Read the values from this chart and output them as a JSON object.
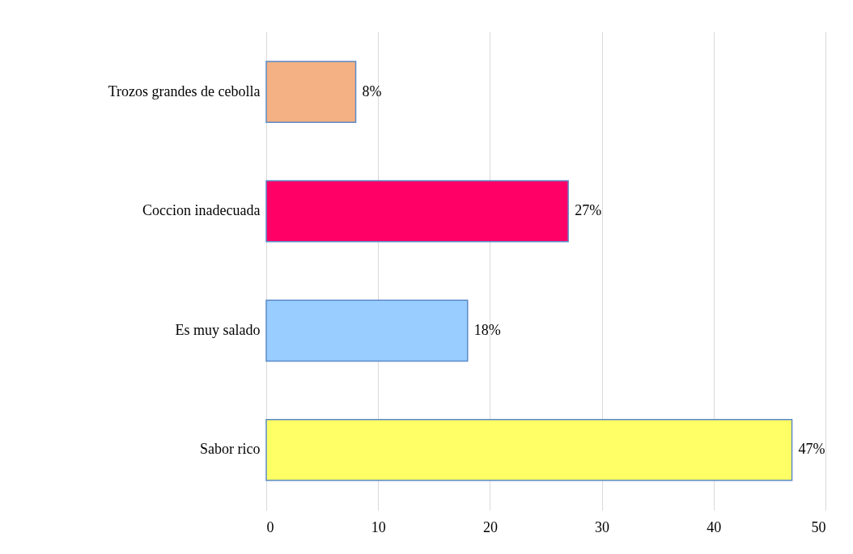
{
  "chart_data": {
    "type": "bar",
    "orientation": "horizontal",
    "categories": [
      "Trozos grandes de cebolla",
      "Coccion inadecuada",
      "Es muy salado",
      "Sabor rico"
    ],
    "values": [
      8,
      27,
      18,
      47
    ],
    "colors": [
      "#f4b183",
      "#ff0066",
      "#99ccff",
      "#ffff66"
    ],
    "value_labels": [
      "8%",
      "27%",
      "18%",
      "47%"
    ],
    "xlim": [
      0,
      50
    ],
    "xticks": [
      0,
      10,
      20,
      30,
      40,
      50
    ],
    "grid": "x"
  }
}
